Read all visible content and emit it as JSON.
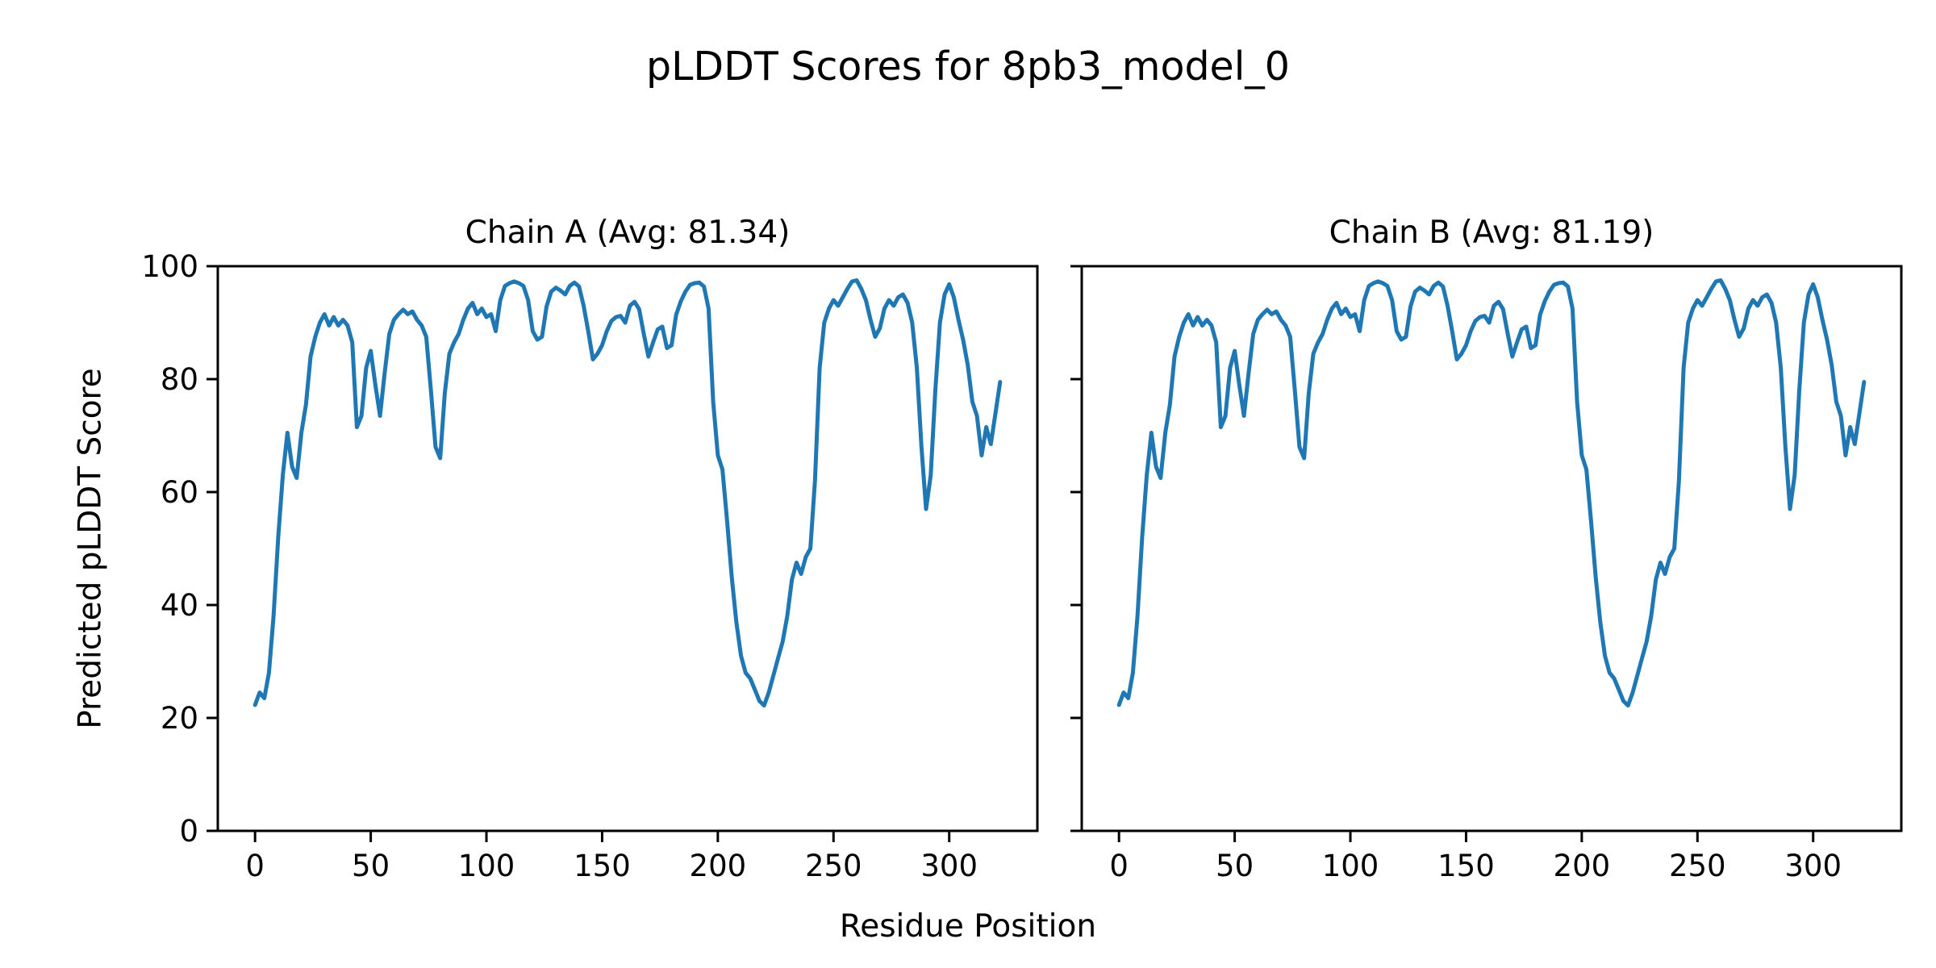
{
  "figure": {
    "title": "pLDDT Scores for 8pb3_model_0",
    "background": "#ffffff",
    "text_color": "#000000"
  },
  "chart_data": {
    "type": "line",
    "suptitle": "pLDDT Scores for 8pb3_model_0",
    "xlabel": "Residue Position",
    "ylabel": "Predicted pLDDT Score",
    "grid": false,
    "legend": false,
    "line_color": "#1f77b4",
    "axis_color": "#000000",
    "xlim": [
      -16.1,
      338.1
    ],
    "ylim": [
      0,
      100
    ],
    "xticks": [
      0,
      50,
      100,
      150,
      200,
      250,
      300
    ],
    "yticks": [
      0,
      20,
      40,
      60,
      80,
      100
    ],
    "x_start": 0,
    "x_step": 2,
    "subplots": [
      {
        "title": "Chain A (Avg: 81.34)",
        "avg": 81.34,
        "values": [
          22.3,
          24.5,
          23.5,
          28,
          38,
          52,
          63,
          70.5,
          64.5,
          62.5,
          70.5,
          75.5,
          84,
          87.5,
          90,
          91.5,
          89.5,
          91,
          89.5,
          90.5,
          89.5,
          86.5,
          71.5,
          73.5,
          82,
          85,
          79,
          73.5,
          81,
          88,
          90.5,
          91.5,
          92.3,
          91.5,
          92,
          90.5,
          89.5,
          87.5,
          78,
          68,
          66,
          77.5,
          84.5,
          86.5,
          88,
          90.5,
          92.5,
          93.5,
          91.5,
          92.5,
          91,
          91.5,
          88.5,
          94,
          96.5,
          97,
          97.3,
          97,
          96.5,
          94,
          88.5,
          87,
          87.5,
          92.9,
          95.5,
          96.2,
          95.7,
          95,
          96.5,
          97.1,
          96.4,
          93,
          88.5,
          83.5,
          84.5,
          86,
          88.5,
          90.3,
          91,
          91.2,
          90,
          93,
          93.7,
          92.4,
          88,
          84,
          86.5,
          88.8,
          89.3,
          85.5,
          86,
          91.4,
          93.8,
          95.5,
          96.7,
          97,
          97.1,
          96.4,
          92.5,
          76,
          66.5,
          64,
          55,
          45,
          37,
          31,
          28,
          27,
          25,
          23,
          22.2,
          24.5,
          27.5,
          30.5,
          33.5,
          38,
          44.5,
          47.5,
          45.5,
          48.5,
          50,
          62,
          82,
          90,
          92.5,
          94,
          93,
          94.5,
          96,
          97.3,
          97.5,
          96,
          94,
          90.5,
          87.5,
          89,
          92.5,
          94,
          93,
          94.5,
          95,
          93.5,
          90,
          82,
          68,
          57,
          63,
          78,
          90,
          95,
          96.8,
          94.5,
          90.5,
          87,
          82.5,
          76,
          73.5,
          66.5,
          71.5,
          68.5,
          74,
          79.5
        ]
      },
      {
        "title": "Chain B (Avg: 81.19)",
        "avg": 81.19,
        "values": [
          22.3,
          24.5,
          23.5,
          28,
          38,
          52,
          63,
          70.5,
          64.5,
          62.5,
          70.5,
          75.5,
          84,
          87.5,
          90,
          91.5,
          89.5,
          91,
          89.5,
          90.5,
          89.5,
          86.5,
          71.5,
          73.5,
          82,
          85,
          79,
          73.5,
          81,
          88,
          90.5,
          91.5,
          92.3,
          91.5,
          92,
          90.5,
          89.5,
          87.5,
          78,
          68,
          66,
          77.5,
          84.5,
          86.5,
          88,
          90.5,
          92.5,
          93.5,
          91.5,
          92.5,
          91,
          91.5,
          88.5,
          94,
          96.5,
          97,
          97.3,
          97,
          96.5,
          94,
          88.5,
          87,
          87.5,
          92.9,
          95.5,
          96.2,
          95.7,
          95,
          96.5,
          97.1,
          96.4,
          93,
          88.5,
          83.5,
          84.5,
          86,
          88.5,
          90.3,
          91,
          91.2,
          90,
          93,
          93.7,
          92.4,
          88,
          84,
          86.5,
          88.8,
          89.3,
          85.5,
          86,
          91.4,
          93.8,
          95.5,
          96.7,
          97,
          97.1,
          96.4,
          92.5,
          76,
          66.5,
          64,
          55,
          45,
          37,
          31,
          28,
          27,
          25,
          23,
          22.2,
          24.5,
          27.5,
          30.5,
          33.5,
          38,
          44.5,
          47.5,
          45.5,
          48.5,
          50,
          62,
          82,
          90,
          92.5,
          94,
          93,
          94.5,
          96,
          97.3,
          97.5,
          96,
          94,
          90.5,
          87.5,
          89,
          92.5,
          94,
          93,
          94.5,
          95,
          93.5,
          90,
          82,
          68,
          57,
          63,
          78,
          90,
          95,
          96.8,
          94.5,
          90.5,
          87,
          82.5,
          76,
          73.5,
          66.5,
          71.5,
          68.5,
          74,
          79.5
        ]
      }
    ]
  }
}
